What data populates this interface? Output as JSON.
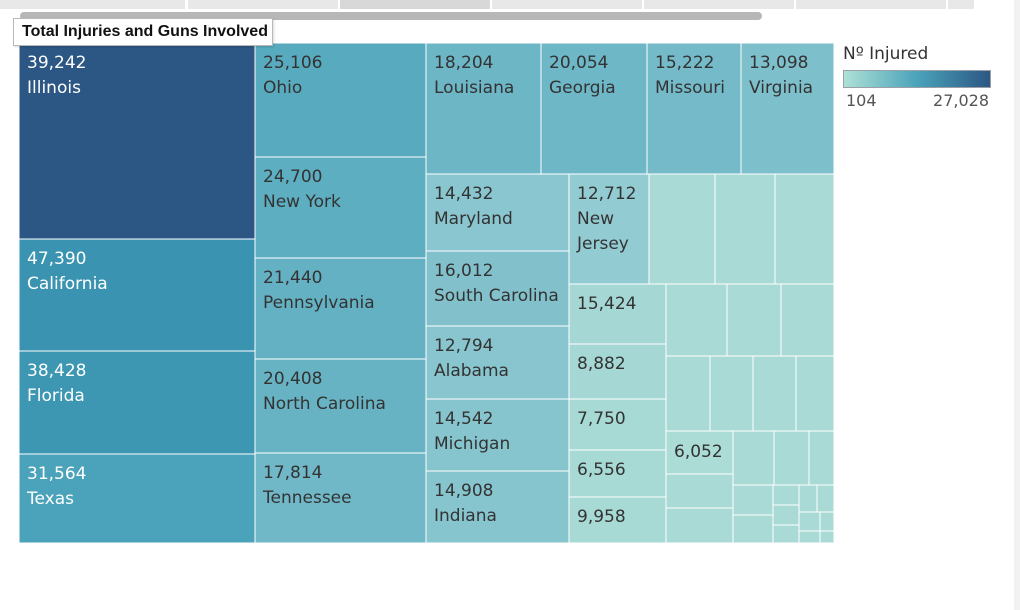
{
  "title": "Total Injuries and Guns Involved",
  "legend": {
    "title": "Nº Injured",
    "min": "104",
    "max": "27,028",
    "color_low": "#aee0d6",
    "color_mid": "#4aa3ba",
    "color_high": "#2c5784"
  },
  "chart_data": {
    "type": "treemap",
    "size_measure": "",
    "color_measure": "Nº Injured",
    "color_range": [
      104,
      27028
    ],
    "cells": [
      {
        "value": "39,242",
        "state": "Illinois",
        "color": "#2c5784"
      },
      {
        "value": "47,390",
        "state": "California",
        "color": "#3a93b0"
      },
      {
        "value": "38,428",
        "state": "Florida",
        "color": "#3d97b3"
      },
      {
        "value": "31,564",
        "state": "Texas",
        "color": "#4aa3ba"
      },
      {
        "value": "25,106",
        "state": "Ohio",
        "color": "#58aabf"
      },
      {
        "value": "24,700",
        "state": "New York",
        "color": "#5eaec2"
      },
      {
        "value": "21,440",
        "state": "Pennsylvania",
        "color": "#64b1c3"
      },
      {
        "value": "20,408",
        "state": "North Carolina",
        "color": "#67b3c4"
      },
      {
        "value": "17,814",
        "state": "Tennessee",
        "color": "#70b8c7"
      },
      {
        "value": "18,204",
        "state": "Louisiana",
        "color": "#6cb6c6"
      },
      {
        "value": "20,054",
        "state": "Georgia",
        "color": "#6eb7c7"
      },
      {
        "value": "15,222",
        "state": "Missouri",
        "color": "#74bac9"
      },
      {
        "value": "13,098",
        "state": "Virginia",
        "color": "#7ebfcc"
      },
      {
        "value": "14,432",
        "state": "Maryland",
        "color": "#8ac6cf"
      },
      {
        "value": "16,012",
        "state": "South Carolina",
        "color": "#82c1cc"
      },
      {
        "value": "12,794",
        "state": "Alabama",
        "color": "#88c5cf"
      },
      {
        "value": "14,542",
        "state": "Michigan",
        "color": "#86c4ce"
      },
      {
        "value": "14,908",
        "state": "Indiana",
        "color": "#86c4ce"
      },
      {
        "value": "12,712",
        "state": "New Jersey",
        "color": "#92cbd2"
      },
      {
        "value": "15,424",
        "state": "",
        "color": "#a5d7d4"
      },
      {
        "value": "8,882",
        "state": "",
        "color": "#a5d7d4"
      },
      {
        "value": "7,750",
        "state": "",
        "color": "#a7d9d5"
      },
      {
        "value": "6,556",
        "state": "",
        "color": "#a8dad5"
      },
      {
        "value": "9,958",
        "state": "",
        "color": "#a7d9d5"
      },
      {
        "value": "6,052",
        "state": "",
        "color": "#abdcd6"
      }
    ]
  }
}
